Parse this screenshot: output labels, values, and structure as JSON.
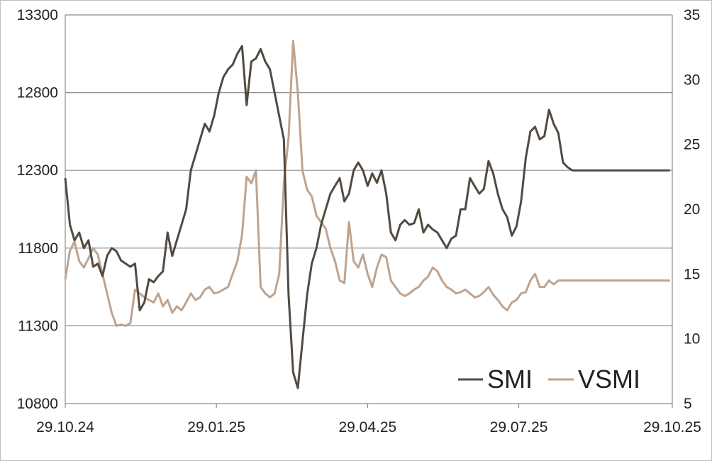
{
  "chart_data": {
    "type": "line",
    "title": "",
    "xlabel": "",
    "ylabel": "",
    "y2label": "",
    "grid": true,
    "legend_position": "bottom-right",
    "x_tick_labels": [
      "29.10.24",
      "29.01.25",
      "29.04.25",
      "29.07.25",
      "29.10.25"
    ],
    "x_range": [
      0,
      261
    ],
    "x_ticks": [
      0,
      65,
      130,
      195,
      261
    ],
    "y_left": {
      "ylim": [
        10800,
        13300
      ],
      "ticks": [
        10800,
        11300,
        11800,
        12300,
        12800,
        13300
      ],
      "tick_labels": [
        "10800",
        "11300",
        "11800",
        "12300",
        "12800",
        "13300"
      ]
    },
    "y_right": {
      "ylim": [
        5,
        35
      ],
      "ticks": [
        5,
        10,
        15,
        20,
        25,
        30,
        35
      ],
      "tick_labels": [
        "5",
        "10",
        "15",
        "20",
        "25",
        "30",
        "35"
      ]
    },
    "series": [
      {
        "name": "SMI",
        "axis": "left",
        "color": "#524a40",
        "x": [
          0,
          2,
          4,
          6,
          8,
          10,
          12,
          14,
          16,
          18,
          20,
          22,
          24,
          26,
          28,
          30,
          32,
          34,
          36,
          38,
          40,
          42,
          44,
          46,
          48,
          50,
          52,
          54,
          56,
          58,
          60,
          62,
          64,
          66,
          68,
          70,
          72,
          74,
          76,
          78,
          80,
          82,
          84,
          86,
          88,
          90,
          92,
          94,
          96,
          98,
          100,
          102,
          104,
          106,
          108,
          110,
          112,
          114,
          116,
          118,
          120,
          122,
          124,
          126,
          128,
          130,
          132,
          134,
          136,
          138,
          140,
          142,
          144,
          146,
          148,
          150,
          152,
          154,
          156,
          158,
          160,
          162,
          164,
          166,
          168,
          170,
          172,
          174,
          176,
          178,
          180,
          182,
          184,
          186,
          188,
          190,
          192,
          194,
          196,
          198,
          200,
          202,
          204,
          206,
          208,
          210,
          212,
          214,
          216,
          218,
          220,
          222,
          224,
          226,
          228,
          230,
          232,
          234,
          236,
          238,
          240,
          242,
          244,
          246,
          248,
          250,
          252,
          254,
          256,
          258,
          260
        ],
        "values": [
          12250,
          11950,
          11850,
          11900,
          11800,
          11850,
          11680,
          11700,
          11620,
          11750,
          11800,
          11780,
          11720,
          11700,
          11680,
          11700,
          11400,
          11450,
          11600,
          11580,
          11620,
          11650,
          11900,
          11750,
          11850,
          11950,
          12050,
          12300,
          12400,
          12500,
          12600,
          12550,
          12650,
          12800,
          12900,
          12950,
          12980,
          13050,
          13100,
          12720,
          13000,
          13020,
          13080,
          13000,
          12950,
          12800,
          12650,
          12500,
          11500,
          11000,
          10900,
          11200,
          11500,
          11700,
          11800,
          11950,
          12050,
          12150,
          12200,
          12250,
          12100,
          12150,
          12300,
          12350,
          12300,
          12200,
          12280,
          12220,
          12300,
          12150,
          11900,
          11850,
          11950,
          11980,
          11950,
          11960,
          12050,
          11900,
          11950,
          11920,
          11900,
          11850,
          11800,
          11860,
          11880,
          12050,
          12050,
          12250,
          12200,
          12150,
          12180,
          12360,
          12280,
          12150,
          12050,
          12000,
          11880,
          11940,
          12100,
          12380,
          12550,
          12580,
          12500,
          12520,
          12690,
          12600,
          12540,
          12350,
          12320,
          12300,
          12300,
          12300,
          12300,
          12300,
          12300,
          12300,
          12300,
          12300,
          12300,
          12300,
          12300,
          12300,
          12300,
          12300,
          12300,
          12300,
          12300,
          12300,
          12300,
          12300,
          12300
        ]
      },
      {
        "name": "VSMI",
        "axis": "right",
        "color": "#bfa38e",
        "x": [
          0,
          2,
          4,
          6,
          8,
          10,
          12,
          14,
          16,
          18,
          20,
          22,
          24,
          26,
          28,
          30,
          32,
          34,
          36,
          38,
          40,
          42,
          44,
          46,
          48,
          50,
          52,
          54,
          56,
          58,
          60,
          62,
          64,
          66,
          68,
          70,
          72,
          74,
          76,
          78,
          80,
          82,
          84,
          86,
          88,
          90,
          92,
          94,
          96,
          98,
          100,
          102,
          104,
          106,
          108,
          110,
          112,
          114,
          116,
          118,
          120,
          122,
          124,
          126,
          128,
          130,
          132,
          134,
          136,
          138,
          140,
          142,
          144,
          146,
          148,
          150,
          152,
          154,
          156,
          158,
          160,
          162,
          164,
          166,
          168,
          170,
          172,
          174,
          176,
          178,
          180,
          182,
          184,
          186,
          188,
          190,
          192,
          194,
          196,
          198,
          200,
          202,
          204,
          206,
          208,
          210,
          212,
          214,
          216,
          218,
          220,
          222,
          224,
          226,
          228,
          230,
          232,
          234,
          236,
          238,
          240,
          242,
          244,
          246,
          248,
          250,
          252,
          254,
          256,
          258,
          260
        ],
        "values": [
          14.6,
          16.8,
          17.5,
          16.0,
          15.5,
          16.2,
          17.0,
          16.5,
          15.0,
          13.5,
          12.0,
          11.0,
          11.1,
          11.0,
          11.2,
          13.8,
          13.5,
          13.2,
          13.0,
          12.8,
          13.5,
          12.5,
          13.0,
          12.0,
          12.5,
          12.2,
          12.8,
          13.5,
          13.0,
          13.2,
          13.8,
          14.0,
          13.5,
          13.6,
          13.8,
          14.0,
          15.0,
          16.0,
          18.0,
          22.5,
          22.0,
          23.0,
          14.0,
          13.5,
          13.2,
          13.5,
          15.0,
          22.0,
          25.5,
          33.0,
          29.0,
          23.0,
          21.5,
          21.0,
          19.5,
          19.0,
          18.5,
          17.0,
          16.0,
          14.5,
          14.3,
          19.0,
          16.0,
          15.5,
          16.5,
          15.0,
          14.0,
          15.5,
          16.5,
          16.3,
          14.5,
          14.0,
          13.5,
          13.3,
          13.5,
          13.8,
          14.0,
          14.5,
          14.8,
          15.5,
          15.2,
          14.5,
          14.0,
          13.8,
          13.5,
          13.6,
          13.8,
          13.5,
          13.2,
          13.3,
          13.6,
          14.0,
          13.4,
          13.0,
          12.5,
          12.2,
          12.8,
          13.0,
          13.5,
          13.6,
          14.5,
          15.0,
          14.0,
          14.0,
          14.5,
          14.2,
          14.5,
          14.5,
          14.5,
          14.5,
          14.5,
          14.5,
          14.5,
          14.5,
          14.5,
          14.5,
          14.5,
          14.5,
          14.5,
          14.5,
          14.5,
          14.5,
          14.5,
          14.5,
          14.5,
          14.5,
          14.5,
          14.5,
          14.5,
          14.5,
          14.5
        ]
      }
    ]
  }
}
